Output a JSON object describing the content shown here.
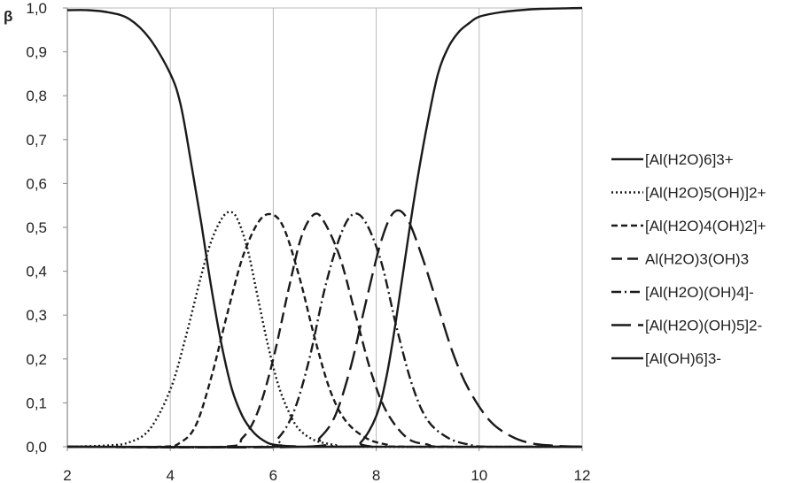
{
  "chart_data": {
    "type": "line",
    "title": "",
    "xlabel": "",
    "ylabel": "β",
    "xlim": [
      2,
      12
    ],
    "ylim": [
      0,
      1
    ],
    "xticks": [
      2,
      4,
      6,
      8,
      10,
      12
    ],
    "yticks": [
      "0,0",
      "0,1",
      "0,2",
      "0,3",
      "0,4",
      "0,5",
      "0,6",
      "0,7",
      "0,8",
      "0,9",
      "1,0"
    ],
    "grid": "vertical",
    "legend_position": "right",
    "series": [
      {
        "name": "[Al(H2O)6]3+",
        "style": "solid",
        "points": [
          [
            2.0,
            0.995
          ],
          [
            2.4,
            0.995
          ],
          [
            2.8,
            0.99
          ],
          [
            3.2,
            0.975
          ],
          [
            3.6,
            0.93
          ],
          [
            4.0,
            0.85
          ],
          [
            4.2,
            0.78
          ],
          [
            4.4,
            0.65
          ],
          [
            4.6,
            0.51
          ],
          [
            4.8,
            0.36
          ],
          [
            5.0,
            0.23
          ],
          [
            5.2,
            0.13
          ],
          [
            5.4,
            0.07
          ],
          [
            5.6,
            0.035
          ],
          [
            5.8,
            0.015
          ],
          [
            6.0,
            0.005
          ],
          [
            6.4,
            0.001
          ],
          [
            7.0,
            0.0
          ],
          [
            12.0,
            0.0
          ]
        ]
      },
      {
        "name": "[Al(H2O)5(OH)]2+",
        "style": "dotted",
        "points": [
          [
            2.0,
            0.0
          ],
          [
            2.8,
            0.003
          ],
          [
            3.2,
            0.01
          ],
          [
            3.6,
            0.04
          ],
          [
            4.0,
            0.13
          ],
          [
            4.3,
            0.25
          ],
          [
            4.6,
            0.39
          ],
          [
            4.8,
            0.47
          ],
          [
            5.0,
            0.52
          ],
          [
            5.15,
            0.535
          ],
          [
            5.3,
            0.52
          ],
          [
            5.5,
            0.45
          ],
          [
            5.7,
            0.34
          ],
          [
            5.9,
            0.23
          ],
          [
            6.1,
            0.14
          ],
          [
            6.3,
            0.08
          ],
          [
            6.5,
            0.04
          ],
          [
            6.8,
            0.015
          ],
          [
            7.2,
            0.004
          ],
          [
            7.6,
            0.0
          ],
          [
            12.0,
            0.0
          ]
        ]
      },
      {
        "name": "[Al(H2O)4(OH)2]+",
        "style": "short-dash",
        "points": [
          [
            2.0,
            0.0
          ],
          [
            3.8,
            0.0
          ],
          [
            4.2,
            0.01
          ],
          [
            4.5,
            0.05
          ],
          [
            4.8,
            0.16
          ],
          [
            5.1,
            0.3
          ],
          [
            5.4,
            0.43
          ],
          [
            5.7,
            0.51
          ],
          [
            5.95,
            0.53
          ],
          [
            6.2,
            0.5
          ],
          [
            6.5,
            0.39
          ],
          [
            6.8,
            0.25
          ],
          [
            7.1,
            0.13
          ],
          [
            7.4,
            0.06
          ],
          [
            7.8,
            0.02
          ],
          [
            8.2,
            0.005
          ],
          [
            8.6,
            0.0
          ],
          [
            12.0,
            0.0
          ]
        ]
      },
      {
        "name": "Al(H2O)3(OH)3",
        "style": "dash",
        "points": [
          [
            2.0,
            0.0
          ],
          [
            5.0,
            0.0
          ],
          [
            5.4,
            0.02
          ],
          [
            5.7,
            0.08
          ],
          [
            6.0,
            0.2
          ],
          [
            6.3,
            0.36
          ],
          [
            6.55,
            0.48
          ],
          [
            6.8,
            0.53
          ],
          [
            7.0,
            0.51
          ],
          [
            7.3,
            0.43
          ],
          [
            7.6,
            0.3
          ],
          [
            7.9,
            0.17
          ],
          [
            8.2,
            0.08
          ],
          [
            8.6,
            0.02
          ],
          [
            9.0,
            0.005
          ],
          [
            9.4,
            0.0
          ],
          [
            12.0,
            0.0
          ]
        ]
      },
      {
        "name": "[Al(H2O)(OH)4]-",
        "style": "dash-dot",
        "points": [
          [
            2.0,
            0.0
          ],
          [
            5.8,
            0.0
          ],
          [
            6.1,
            0.02
          ],
          [
            6.4,
            0.08
          ],
          [
            6.7,
            0.2
          ],
          [
            7.0,
            0.36
          ],
          [
            7.3,
            0.48
          ],
          [
            7.55,
            0.53
          ],
          [
            7.8,
            0.51
          ],
          [
            8.1,
            0.42
          ],
          [
            8.4,
            0.27
          ],
          [
            8.7,
            0.14
          ],
          [
            9.0,
            0.06
          ],
          [
            9.4,
            0.02
          ],
          [
            9.8,
            0.005
          ],
          [
            10.2,
            0.0
          ],
          [
            12.0,
            0.0
          ]
        ]
      },
      {
        "name": "[Al(H2O)(OH)5]2-",
        "style": "long-dash",
        "points": [
          [
            2.0,
            0.0
          ],
          [
            6.6,
            0.0
          ],
          [
            6.9,
            0.02
          ],
          [
            7.2,
            0.07
          ],
          [
            7.5,
            0.18
          ],
          [
            7.8,
            0.33
          ],
          [
            8.1,
            0.47
          ],
          [
            8.35,
            0.535
          ],
          [
            8.6,
            0.52
          ],
          [
            8.9,
            0.43
          ],
          [
            9.2,
            0.32
          ],
          [
            9.5,
            0.21
          ],
          [
            9.8,
            0.13
          ],
          [
            10.2,
            0.06
          ],
          [
            10.6,
            0.025
          ],
          [
            11.0,
            0.008
          ],
          [
            11.5,
            0.002
          ],
          [
            12.0,
            0.0
          ]
        ]
      },
      {
        "name": "[Al(OH)6]3-",
        "style": "solid",
        "points": [
          [
            2.0,
            0.0
          ],
          [
            7.4,
            0.0
          ],
          [
            7.7,
            0.01
          ],
          [
            8.0,
            0.07
          ],
          [
            8.2,
            0.16
          ],
          [
            8.4,
            0.3
          ],
          [
            8.6,
            0.46
          ],
          [
            8.8,
            0.61
          ],
          [
            9.0,
            0.74
          ],
          [
            9.2,
            0.85
          ],
          [
            9.4,
            0.91
          ],
          [
            9.6,
            0.945
          ],
          [
            9.8,
            0.965
          ],
          [
            10.0,
            0.98
          ],
          [
            10.4,
            0.99
          ],
          [
            10.8,
            0.995
          ],
          [
            11.2,
            0.998
          ],
          [
            12.0,
            1.0
          ]
        ]
      }
    ]
  }
}
